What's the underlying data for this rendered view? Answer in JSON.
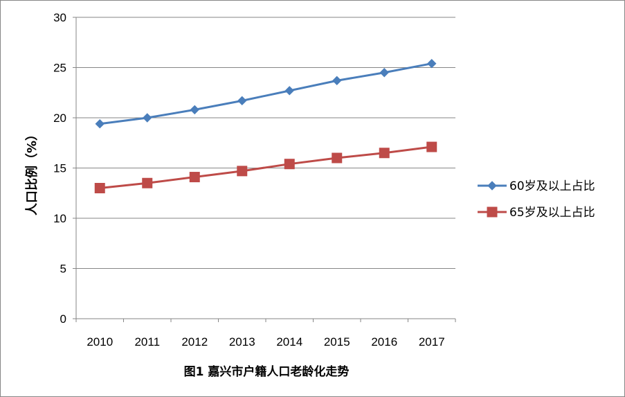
{
  "chart_data": {
    "type": "line",
    "title": "图1  嘉兴市户籍人口老龄化走势",
    "xlabel": "",
    "ylabel": "人口比例（%）",
    "categories": [
      "2010",
      "2011",
      "2012",
      "2013",
      "2014",
      "2015",
      "2016",
      "2017"
    ],
    "ylim": [
      0,
      30
    ],
    "yticks": [
      0,
      5,
      10,
      15,
      20,
      25,
      30
    ],
    "grid": true,
    "legend_position": "right",
    "series": [
      {
        "name": "60岁及以上占比",
        "color": "#4a7ebb",
        "marker": "diamond",
        "values": [
          19.4,
          20.0,
          20.8,
          21.7,
          22.7,
          23.7,
          24.5,
          25.4
        ]
      },
      {
        "name": "65岁及以上占比",
        "color": "#be4b48",
        "marker": "square",
        "values": [
          13.0,
          13.5,
          14.1,
          14.7,
          15.4,
          16.0,
          16.5,
          17.1
        ]
      }
    ]
  }
}
